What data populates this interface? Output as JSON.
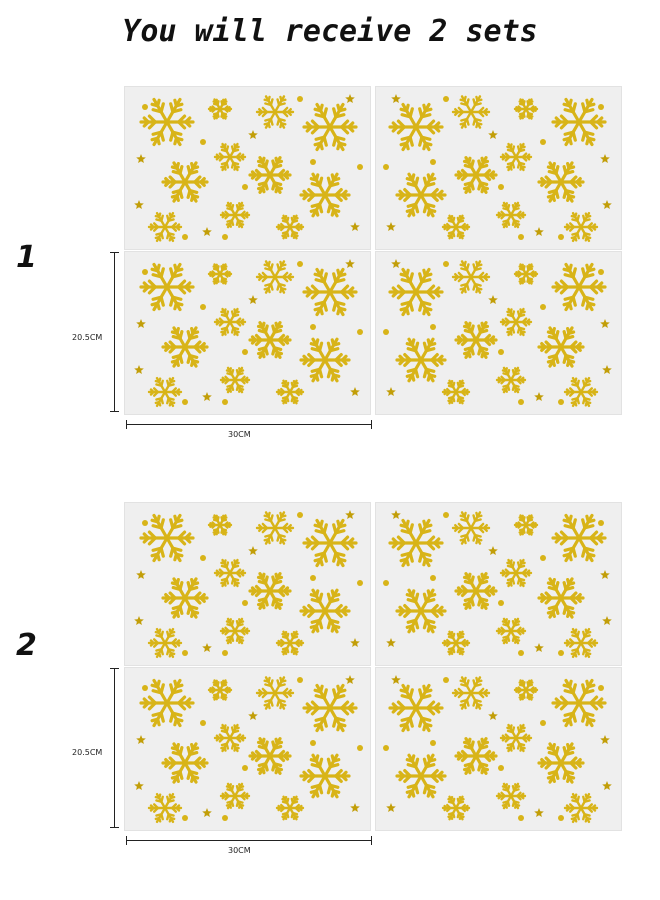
{
  "title": "You will receive 2 sets",
  "sets": [
    {
      "number": "1",
      "height_label": "20.5CM",
      "width_label": "30CM"
    },
    {
      "number": "2",
      "height_label": "20.5CM",
      "width_label": "30CM"
    }
  ],
  "colors": {
    "gold": "#d8b418",
    "gold_dark": "#c29e08",
    "sheet": "#efefef"
  },
  "icons": [
    "snowflake-icon",
    "star-icon",
    "dot-icon"
  ]
}
